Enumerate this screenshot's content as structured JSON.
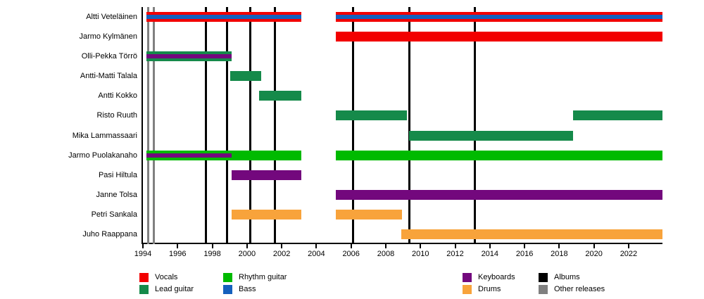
{
  "chart_data": {
    "type": "timeline",
    "x_axis": {
      "min": 1994,
      "max": 2023.95,
      "tick_years": [
        1994,
        1996,
        1998,
        2000,
        2002,
        2004,
        2006,
        2008,
        2010,
        2012,
        2014,
        2016,
        2018,
        2020,
        2022
      ]
    },
    "colors": {
      "vocals": "#f20000",
      "lead_guitar": "#158a4a",
      "rhythm_guitar": "#00ba00",
      "bass": "#1560bd",
      "keyboards": "#73087d",
      "drums": "#f8a33b",
      "albums": "#000000",
      "other_releases": "#808080"
    },
    "rows": [
      {
        "name": "Altti Veteläinen",
        "bars": [
          {
            "role": "vocals",
            "start": 1994.2,
            "end": 2003.15,
            "stripe_role": "bass",
            "stripe_start": 1994.2,
            "stripe_end": 2003.15
          },
          {
            "role": "vocals",
            "start": 2005.1,
            "end": 2023.95,
            "stripe_role": "bass",
            "stripe_start": 2005.1,
            "stripe_end": 2023.95
          }
        ]
      },
      {
        "name": "Jarmo Kylmänen",
        "bars": [
          {
            "role": "vocals",
            "start": 2005.1,
            "end": 2023.95
          }
        ]
      },
      {
        "name": "Olli-Pekka Törrö",
        "bars": [
          {
            "role": "lead_guitar",
            "start": 1994.2,
            "end": 1999.1,
            "stripe_role": "keyboards",
            "stripe_start": 1994.2,
            "stripe_end": 1999.1
          }
        ]
      },
      {
        "name": "Antti-Matti Talala",
        "bars": [
          {
            "role": "lead_guitar",
            "start": 1999.05,
            "end": 2000.8
          }
        ]
      },
      {
        "name": "Antti Kokko",
        "bars": [
          {
            "role": "lead_guitar",
            "start": 2000.7,
            "end": 2003.15
          }
        ]
      },
      {
        "name": "Risto Ruuth",
        "bars": [
          {
            "role": "lead_guitar",
            "start": 2005.1,
            "end": 2009.2
          },
          {
            "role": "lead_guitar",
            "start": 2018.8,
            "end": 2023.95
          }
        ]
      },
      {
        "name": "Mika Lammassaari",
        "bars": [
          {
            "role": "lead_guitar",
            "start": 2009.35,
            "end": 2018.8
          }
        ]
      },
      {
        "name": "Jarmo Puolakanaho",
        "bars": [
          {
            "role": "rhythm_guitar",
            "start": 1994.2,
            "end": 2003.15,
            "stripe_role": "keyboards",
            "stripe_start": 1994.2,
            "stripe_end": 1999.1
          },
          {
            "role": "rhythm_guitar",
            "start": 2005.1,
            "end": 2023.95
          }
        ]
      },
      {
        "name": "Pasi Hiltula",
        "bars": [
          {
            "role": "keyboards",
            "start": 1999.1,
            "end": 2003.15
          }
        ]
      },
      {
        "name": "Janne Tolsa",
        "bars": [
          {
            "role": "keyboards",
            "start": 2005.1,
            "end": 2023.95
          }
        ]
      },
      {
        "name": "Petri Sankala",
        "bars": [
          {
            "role": "drums",
            "start": 1999.1,
            "end": 2003.15
          },
          {
            "role": "drums",
            "start": 2005.1,
            "end": 2008.95
          }
        ]
      },
      {
        "name": "Juho Raappana",
        "bars": [
          {
            "role": "drums",
            "start": 2008.9,
            "end": 2023.95
          }
        ]
      }
    ],
    "event_lines": {
      "albums": [
        1997.65,
        1998.85,
        2000.2,
        2001.6,
        2006.1,
        2009.35,
        2013.15
      ],
      "other_releases": [
        1994.3,
        1994.62
      ]
    },
    "legend": {
      "columns": [
        {
          "items": [
            {
              "label": "Vocals",
              "role": "vocals"
            },
            {
              "label": "Lead guitar",
              "role": "lead_guitar"
            }
          ]
        },
        {
          "items": [
            {
              "label": "Rhythm guitar",
              "role": "rhythm_guitar"
            },
            {
              "label": "Bass",
              "role": "bass"
            }
          ]
        },
        {
          "items": [
            {
              "label": "Keyboards",
              "role": "keyboards"
            },
            {
              "label": "Drums",
              "role": "drums"
            }
          ]
        },
        {
          "items": [
            {
              "label": "Albums",
              "role": "albums"
            },
            {
              "label": "Other releases",
              "role": "other_releases"
            }
          ]
        }
      ]
    }
  }
}
